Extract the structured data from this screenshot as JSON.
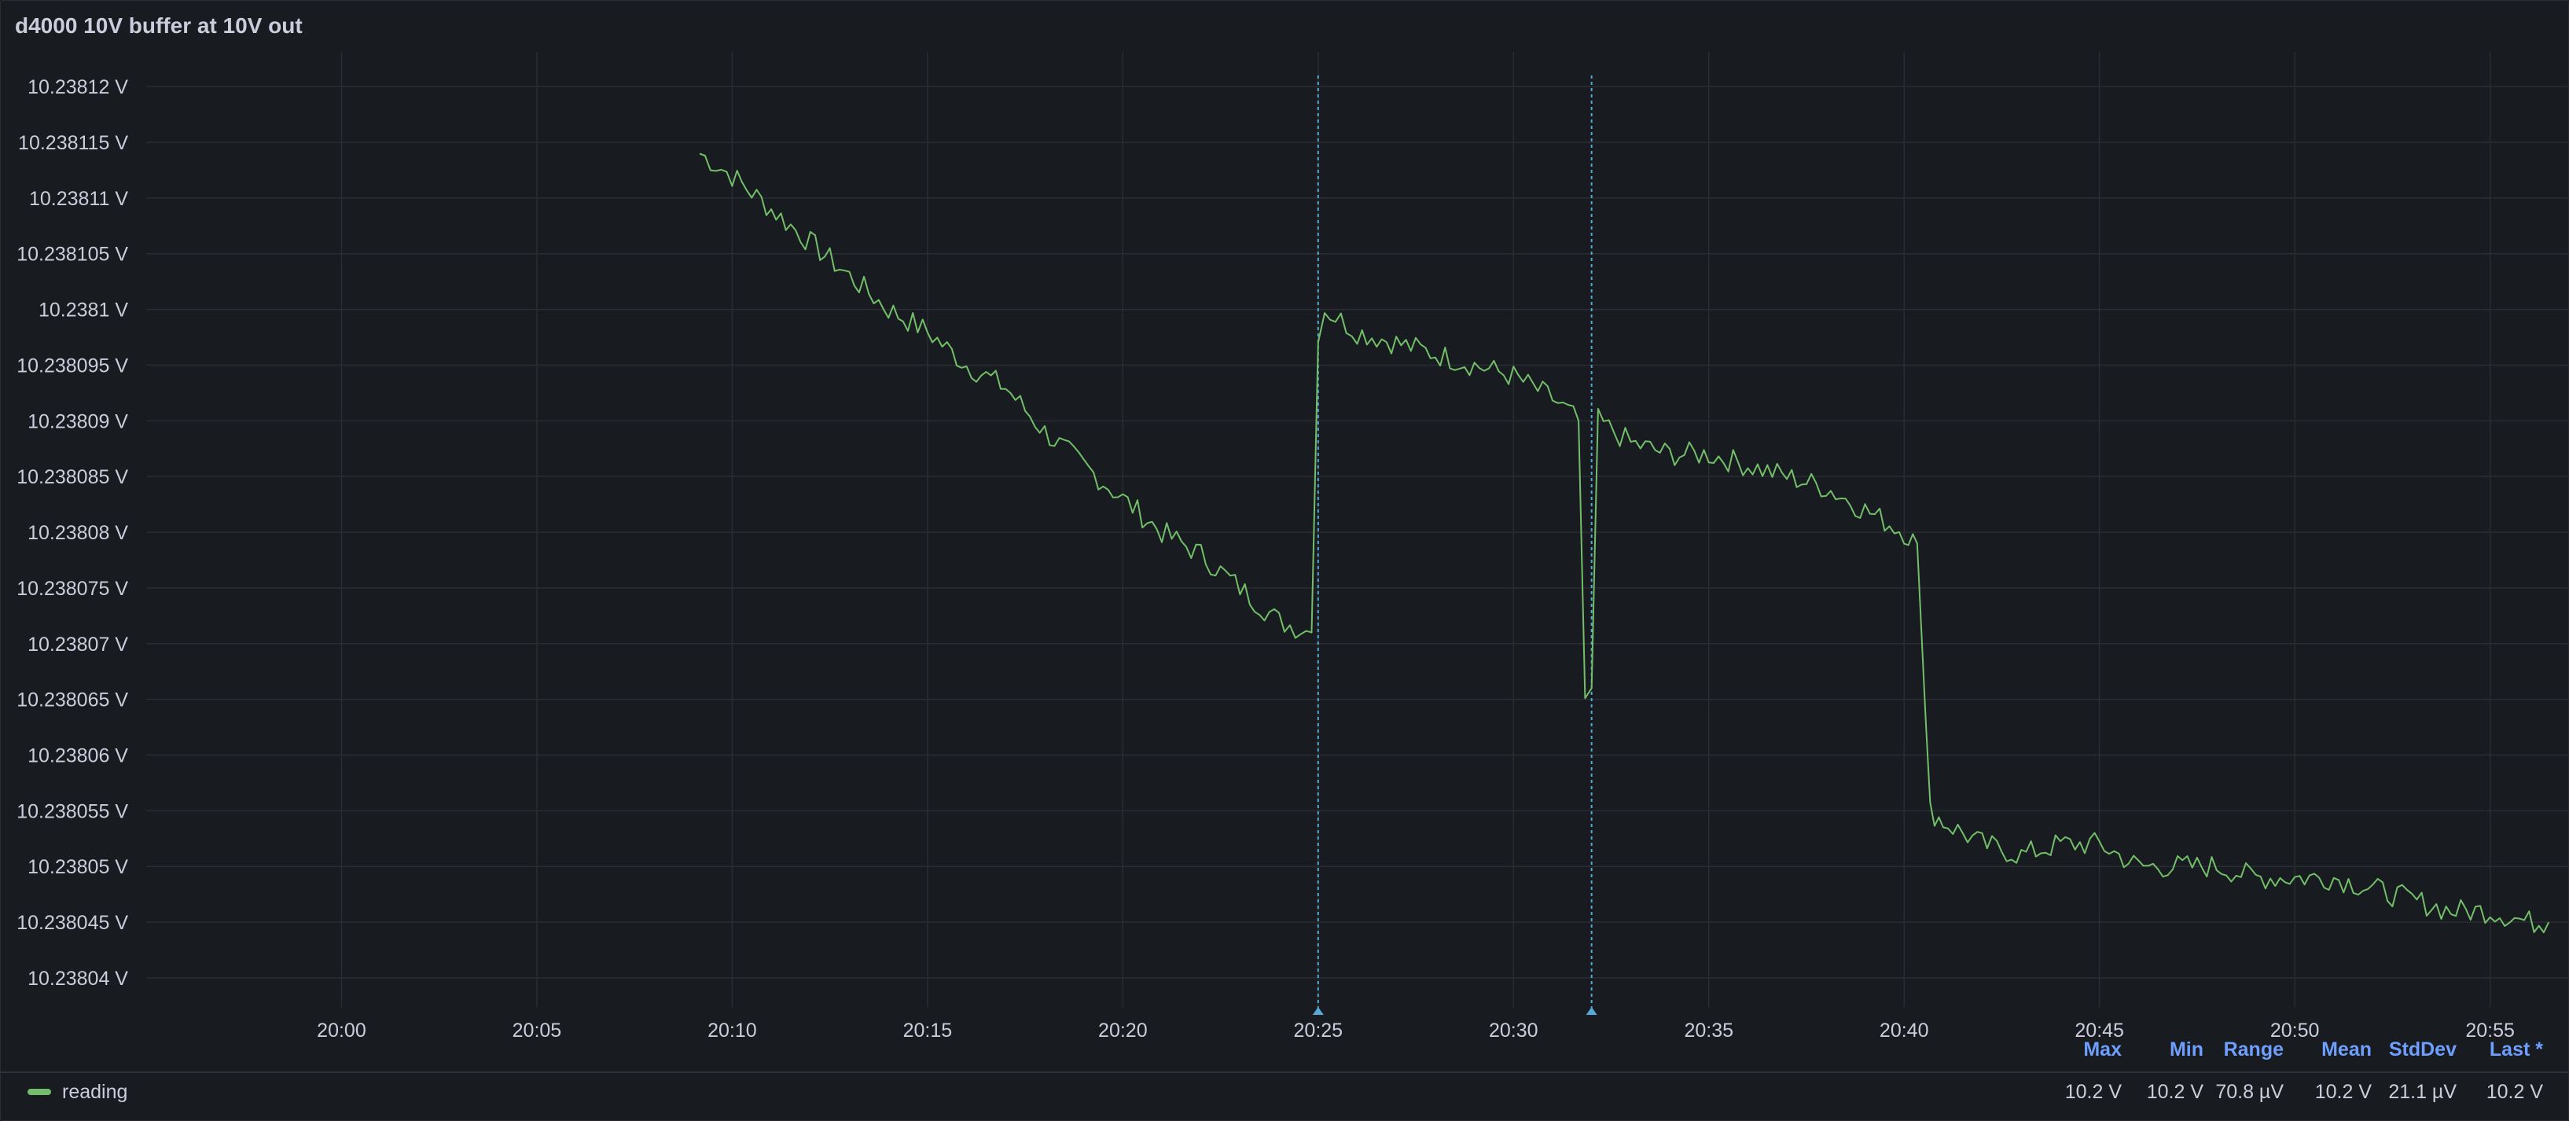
{
  "panel": {
    "title": "d4000 10V buffer at 10V out"
  },
  "colors": {
    "series": "#73bf69",
    "annotation": "#56a8d6",
    "grid": "#2a2d33",
    "legend_header": "#6e9fff"
  },
  "chart_data": {
    "type": "line",
    "title": "d4000 10V buffer at 10V out",
    "xlabel": "",
    "ylabel": "",
    "x_ticks": [
      "20:00",
      "20:05",
      "20:10",
      "20:15",
      "20:20",
      "20:25",
      "20:30",
      "20:35",
      "20:40",
      "20:45",
      "20:50",
      "20:55"
    ],
    "y_ticks": [
      "10.23812 V",
      "10.238115 V",
      "10.23811 V",
      "10.238105 V",
      "10.2381 V",
      "10.238095 V",
      "10.23809 V",
      "10.238085 V",
      "10.23808 V",
      "10.238075 V",
      "10.23807 V",
      "10.238065 V",
      "10.23806 V",
      "10.238055 V",
      "10.23805 V",
      "10.238045 V",
      "10.23804 V"
    ],
    "xlim": [
      "19:55:00",
      "20:57:00"
    ],
    "ylim": [
      10.2380395,
      10.238121
    ],
    "grid": true,
    "legend": "bottom",
    "annotations": [
      "20:25:00",
      "20:32:00"
    ],
    "series": [
      {
        "name": "reading",
        "x": [
          "20:09:10",
          "20:10:00",
          "20:11:00",
          "20:12:00",
          "20:13:00",
          "20:14:00",
          "20:15:00",
          "20:16:00",
          "20:17:00",
          "20:18:00",
          "20:19:00",
          "20:20:00",
          "20:21:00",
          "20:22:00",
          "20:23:00",
          "20:24:00",
          "20:24:50",
          "20:25:00",
          "20:25:10",
          "20:26:00",
          "20:27:00",
          "20:28:00",
          "20:29:00",
          "20:30:00",
          "20:31:00",
          "20:31:40",
          "20:31:50",
          "20:32:00",
          "20:32:10",
          "20:33:00",
          "20:34:00",
          "20:35:00",
          "20:36:00",
          "20:37:00",
          "20:38:00",
          "20:39:00",
          "20:40:00",
          "20:40:20",
          "20:40:40",
          "20:41:00",
          "20:42:00",
          "20:43:00",
          "20:44:00",
          "20:45:00",
          "20:46:00",
          "20:47:00",
          "20:48:00",
          "20:49:00",
          "20:50:00",
          "20:51:00",
          "20:52:00",
          "20:53:00",
          "20:54:00",
          "20:55:00",
          "20:56:00",
          "20:56:30"
        ],
        "values": [
          10.238114,
          10.238112,
          10.238109,
          10.238106,
          10.238103,
          10.2381,
          10.238098,
          10.238095,
          10.238093,
          10.238089,
          10.238086,
          10.238083,
          10.23808,
          10.238078,
          10.238075,
          10.238072,
          10.238071,
          10.238098,
          10.2381,
          10.238098,
          10.238097,
          10.238096,
          10.238095,
          10.238094,
          10.238092,
          10.23809,
          10.238065,
          10.238066,
          10.23809,
          10.238088,
          10.238087,
          10.238087,
          10.238086,
          10.238085,
          10.238084,
          10.238082,
          10.23808,
          10.238079,
          10.238055,
          10.238054,
          10.238052,
          10.238051,
          10.238052,
          10.238052,
          10.23805,
          10.23805,
          10.23805,
          10.238049,
          10.238049,
          10.238049,
          10.238048,
          10.238047,
          10.238046,
          10.238046,
          10.238045,
          10.238045
        ]
      }
    ]
  },
  "legend": {
    "headers": [
      "Max",
      "Min",
      "Range",
      "Mean",
      "StdDev",
      "Last *"
    ],
    "series_name": "reading",
    "values": [
      "10.2 V",
      "10.2 V",
      "70.8 µV",
      "10.2 V",
      "21.1 µV",
      "10.2 V"
    ]
  }
}
